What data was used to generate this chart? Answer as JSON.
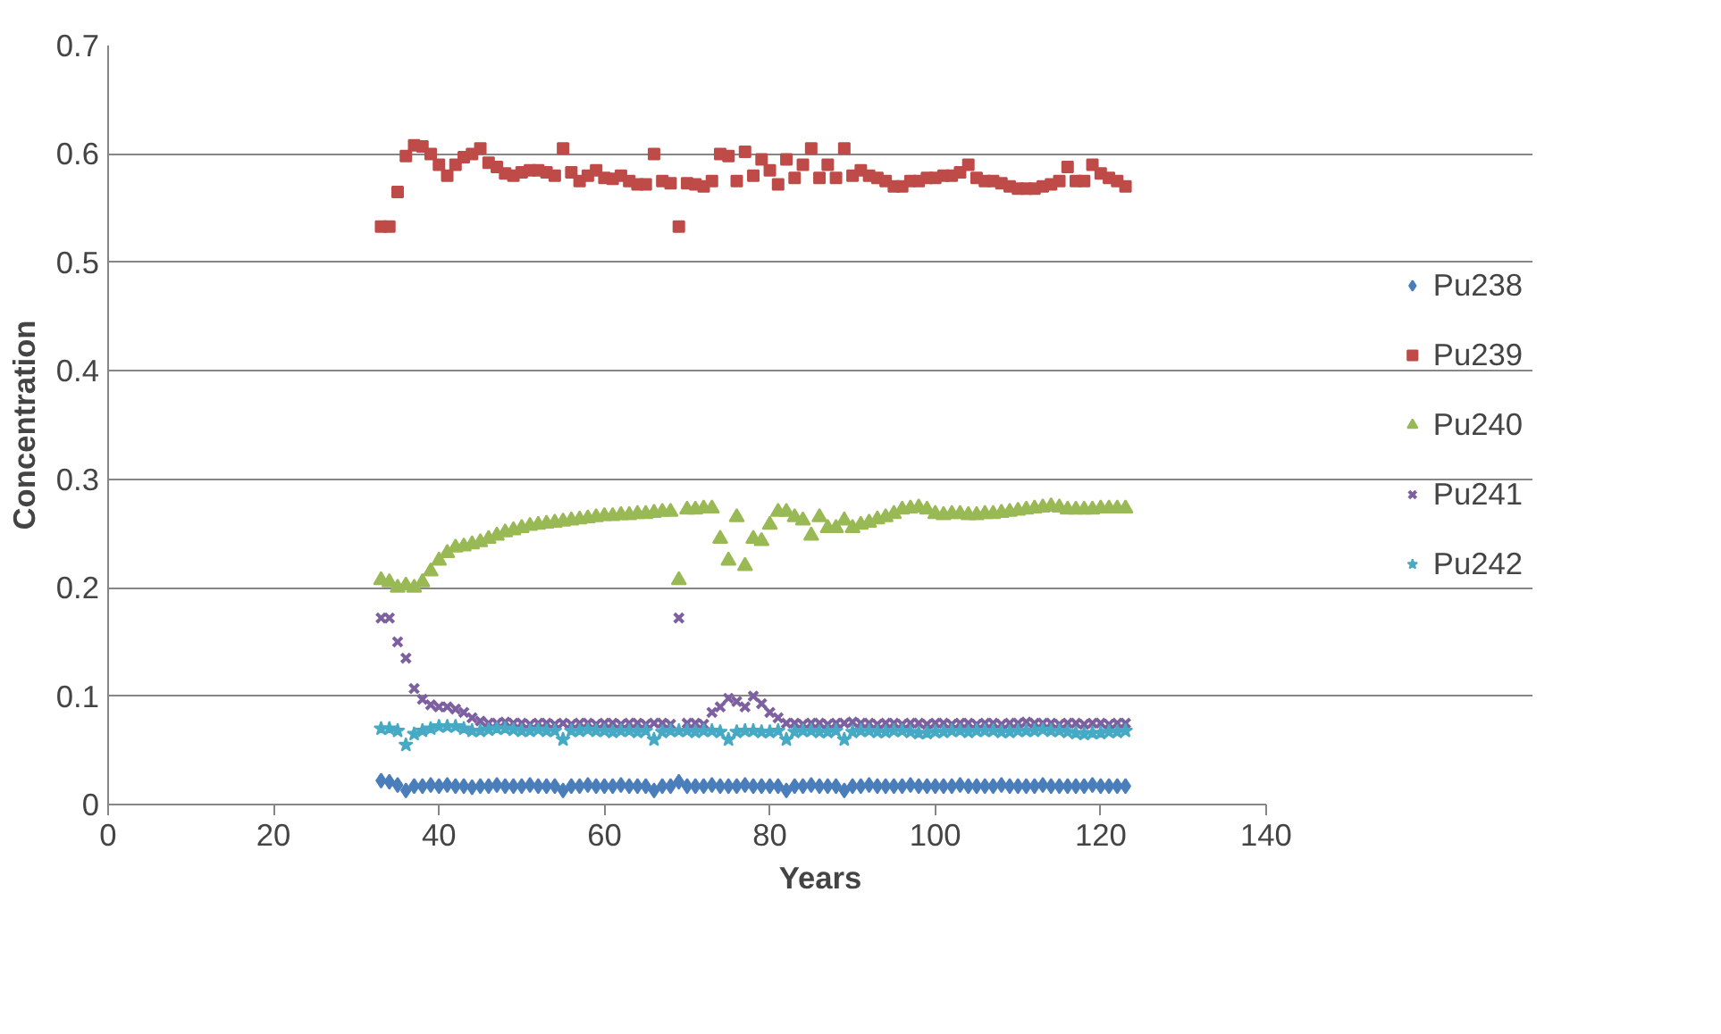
{
  "chart_data": {
    "type": "scatter",
    "xlabel": "Years",
    "ylabel": "Concentration",
    "xlim": [
      0,
      140
    ],
    "xticks": [
      0,
      20,
      40,
      60,
      80,
      100,
      120,
      140
    ],
    "ylim": [
      0,
      0.7
    ],
    "yticks": [
      0,
      0.1,
      0.2,
      0.3,
      0.4,
      0.5,
      0.6,
      0.7
    ],
    "grid": "y",
    "legend": "right",
    "x": [
      33,
      34,
      35,
      36,
      37,
      38,
      39,
      40,
      41,
      42,
      43,
      44,
      45,
      46,
      47,
      48,
      49,
      50,
      51,
      52,
      53,
      54,
      55,
      56,
      57,
      58,
      59,
      60,
      61,
      62,
      63,
      64,
      65,
      66,
      67,
      68,
      69,
      70,
      71,
      72,
      73,
      74,
      75,
      76,
      77,
      78,
      79,
      80,
      81,
      82,
      83,
      84,
      85,
      86,
      87,
      88,
      89,
      90,
      91,
      92,
      93,
      94,
      95,
      96,
      97,
      98,
      99,
      100,
      101,
      102,
      103,
      104,
      105,
      106,
      107,
      108,
      109,
      110,
      111,
      112,
      113,
      114,
      115,
      116,
      117,
      118,
      119,
      120,
      121,
      122,
      123
    ],
    "series": [
      {
        "name": "Pu238",
        "color": "#4a7ebb",
        "marker": "diamond",
        "values": [
          0.022,
          0.021,
          0.018,
          0.013,
          0.017,
          0.017,
          0.018,
          0.017,
          0.018,
          0.017,
          0.017,
          0.016,
          0.017,
          0.017,
          0.018,
          0.017,
          0.017,
          0.017,
          0.018,
          0.017,
          0.017,
          0.017,
          0.013,
          0.017,
          0.017,
          0.018,
          0.017,
          0.017,
          0.017,
          0.018,
          0.017,
          0.017,
          0.017,
          0.013,
          0.017,
          0.017,
          0.021,
          0.017,
          0.017,
          0.017,
          0.018,
          0.017,
          0.017,
          0.017,
          0.018,
          0.017,
          0.017,
          0.017,
          0.017,
          0.013,
          0.017,
          0.017,
          0.018,
          0.017,
          0.017,
          0.017,
          0.013,
          0.017,
          0.017,
          0.018,
          0.017,
          0.017,
          0.017,
          0.017,
          0.018,
          0.017,
          0.017,
          0.017,
          0.017,
          0.017,
          0.018,
          0.017,
          0.017,
          0.017,
          0.017,
          0.018,
          0.017,
          0.017,
          0.017,
          0.017,
          0.018,
          0.017,
          0.017,
          0.017,
          0.017,
          0.017,
          0.018,
          0.017,
          0.017,
          0.017,
          0.017
        ]
      },
      {
        "name": "Pu239",
        "color": "#be4b48",
        "marker": "square",
        "values": [
          0.533,
          0.533,
          0.565,
          0.598,
          0.608,
          0.607,
          0.6,
          0.59,
          0.58,
          0.59,
          0.597,
          0.6,
          0.605,
          0.592,
          0.588,
          0.582,
          0.58,
          0.583,
          0.585,
          0.585,
          0.583,
          0.58,
          0.605,
          0.583,
          0.575,
          0.58,
          0.585,
          0.578,
          0.577,
          0.58,
          0.575,
          0.572,
          0.572,
          0.6,
          0.575,
          0.573,
          0.533,
          0.573,
          0.572,
          0.57,
          0.575,
          0.6,
          0.598,
          0.575,
          0.602,
          0.58,
          0.595,
          0.585,
          0.572,
          0.595,
          0.578,
          0.59,
          0.605,
          0.578,
          0.59,
          0.578,
          0.605,
          0.58,
          0.585,
          0.58,
          0.578,
          0.575,
          0.57,
          0.57,
          0.575,
          0.575,
          0.578,
          0.578,
          0.58,
          0.58,
          0.583,
          0.59,
          0.578,
          0.575,
          0.575,
          0.573,
          0.57,
          0.568,
          0.568,
          0.568,
          0.57,
          0.572,
          0.575,
          0.588,
          0.575,
          0.575,
          0.59,
          0.582,
          0.578,
          0.575,
          0.57
        ]
      },
      {
        "name": "Pu240",
        "color": "#98b954",
        "marker": "triangle",
        "values": [
          0.207,
          0.205,
          0.2,
          0.202,
          0.2,
          0.205,
          0.215,
          0.225,
          0.232,
          0.237,
          0.238,
          0.24,
          0.242,
          0.245,
          0.248,
          0.251,
          0.253,
          0.255,
          0.257,
          0.258,
          0.259,
          0.26,
          0.261,
          0.262,
          0.263,
          0.264,
          0.265,
          0.266,
          0.266,
          0.267,
          0.267,
          0.268,
          0.268,
          0.269,
          0.27,
          0.27,
          0.207,
          0.272,
          0.272,
          0.273,
          0.273,
          0.245,
          0.225,
          0.265,
          0.22,
          0.245,
          0.243,
          0.258,
          0.27,
          0.27,
          0.265,
          0.262,
          0.248,
          0.265,
          0.255,
          0.255,
          0.262,
          0.255,
          0.258,
          0.26,
          0.263,
          0.265,
          0.268,
          0.272,
          0.273,
          0.274,
          0.272,
          0.268,
          0.267,
          0.268,
          0.268,
          0.267,
          0.267,
          0.268,
          0.268,
          0.269,
          0.27,
          0.271,
          0.272,
          0.273,
          0.274,
          0.275,
          0.274,
          0.272,
          0.272,
          0.272,
          0.272,
          0.273,
          0.273,
          0.273,
          0.273
        ]
      },
      {
        "name": "Pu241",
        "color": "#7d60a0",
        "marker": "cross",
        "values": [
          0.172,
          0.172,
          0.15,
          0.135,
          0.107,
          0.097,
          0.092,
          0.09,
          0.09,
          0.088,
          0.085,
          0.08,
          0.077,
          0.075,
          0.075,
          0.076,
          0.075,
          0.075,
          0.074,
          0.075,
          0.075,
          0.074,
          0.075,
          0.074,
          0.075,
          0.075,
          0.074,
          0.075,
          0.075,
          0.074,
          0.075,
          0.075,
          0.074,
          0.075,
          0.075,
          0.074,
          0.172,
          0.075,
          0.075,
          0.074,
          0.085,
          0.09,
          0.098,
          0.095,
          0.09,
          0.1,
          0.093,
          0.085,
          0.08,
          0.075,
          0.075,
          0.074,
          0.075,
          0.075,
          0.074,
          0.075,
          0.075,
          0.076,
          0.075,
          0.075,
          0.074,
          0.075,
          0.075,
          0.074,
          0.075,
          0.075,
          0.074,
          0.075,
          0.075,
          0.074,
          0.075,
          0.075,
          0.074,
          0.075,
          0.075,
          0.074,
          0.075,
          0.075,
          0.076,
          0.075,
          0.075,
          0.075,
          0.074,
          0.075,
          0.075,
          0.074,
          0.075,
          0.075,
          0.074,
          0.075,
          0.075
        ]
      },
      {
        "name": "Pu242",
        "color": "#46aac5",
        "marker": "star",
        "values": [
          0.07,
          0.07,
          0.068,
          0.055,
          0.065,
          0.068,
          0.07,
          0.072,
          0.072,
          0.072,
          0.07,
          0.068,
          0.068,
          0.069,
          0.07,
          0.07,
          0.069,
          0.068,
          0.068,
          0.069,
          0.068,
          0.068,
          0.06,
          0.068,
          0.068,
          0.069,
          0.068,
          0.068,
          0.067,
          0.068,
          0.068,
          0.067,
          0.068,
          0.06,
          0.067,
          0.068,
          0.068,
          0.068,
          0.067,
          0.068,
          0.068,
          0.067,
          0.06,
          0.067,
          0.068,
          0.068,
          0.067,
          0.067,
          0.068,
          0.06,
          0.067,
          0.068,
          0.068,
          0.067,
          0.067,
          0.068,
          0.06,
          0.067,
          0.068,
          0.068,
          0.067,
          0.067,
          0.068,
          0.068,
          0.067,
          0.066,
          0.066,
          0.067,
          0.067,
          0.068,
          0.068,
          0.067,
          0.068,
          0.068,
          0.068,
          0.067,
          0.067,
          0.068,
          0.068,
          0.068,
          0.069,
          0.068,
          0.068,
          0.067,
          0.066,
          0.065,
          0.066,
          0.066,
          0.067,
          0.067,
          0.068
        ]
      }
    ]
  }
}
